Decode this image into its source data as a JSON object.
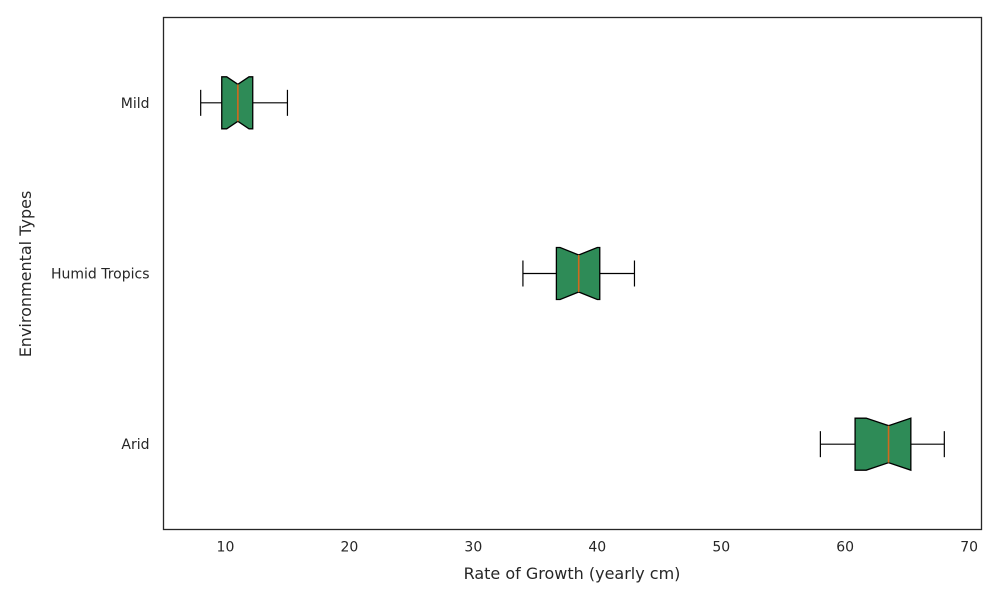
{
  "chart_data": {
    "type": "boxplot",
    "orientation": "horizontal",
    "notched": true,
    "title": "",
    "xlabel": "Rate of Growth (yearly cm)",
    "ylabel": "Environmental Types",
    "xlim": [
      5,
      71
    ],
    "x_ticks": [
      10,
      20,
      30,
      40,
      50,
      60,
      70
    ],
    "grid": false,
    "categories": [
      "Mild",
      "Humid Tropics",
      "Arid"
    ],
    "boxes": [
      {
        "category": "Mild",
        "whisker_low": 8,
        "q1": 9.7,
        "median": 11,
        "q3": 12.2,
        "whisker_high": 15,
        "notch_low": 10.1,
        "notch_high": 11.9
      },
      {
        "category": "Humid Tropics",
        "whisker_low": 34,
        "q1": 36.7,
        "median": 38.5,
        "q3": 40.2,
        "whisker_high": 43,
        "notch_low": 37.0,
        "notch_high": 40.0
      },
      {
        "category": "Arid",
        "whisker_low": 58,
        "q1": 60.8,
        "median": 63.5,
        "q3": 65.3,
        "whisker_high": 68,
        "notch_low": 61.7,
        "notch_high": 65.3
      }
    ],
    "colors": {
      "box_fill": "#2e8b57",
      "box_edge": "#000000",
      "median": "#d2691e",
      "whisker": "#000000",
      "axis": "#262626"
    }
  }
}
